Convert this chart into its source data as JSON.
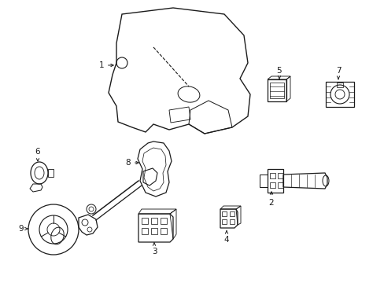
{
  "bg_color": "#ffffff",
  "line_color": "#1a1a1a",
  "lw": 0.9,
  "fs": 7.5,
  "figsize": [
    4.89,
    3.6
  ],
  "dpi": 100
}
